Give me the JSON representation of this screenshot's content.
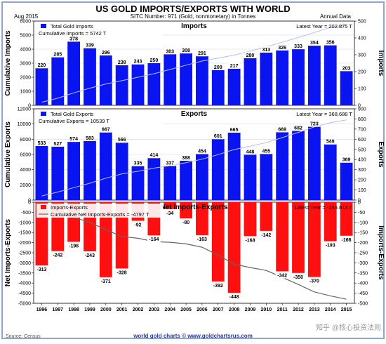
{
  "header": {
    "title": "US GOLD IMPORTS/EXPORTS WITH WORLD",
    "date": "Aug  2015",
    "sitc": "SITC Number: 971 (Gold, nonmonetary) in Tonnes",
    "annual": "Annual Data"
  },
  "footer": {
    "source": "Source: Census",
    "site": "world gold charts © www.goldchartsrus.com",
    "watermark": "知乎 @核心投资法则"
  },
  "colors": {
    "imports_bar": "#0a14f0",
    "exports_bar": "#0a14f0",
    "net_bar": "#ff1010",
    "cumulative_line": "#b6bff0",
    "net_cumulative_line": "#666666",
    "panel_bg": "#ffffff",
    "page_border": "#8fa8c8",
    "title_color": "#000000"
  },
  "chart_data": [
    {
      "type": "bar",
      "title": "Imports",
      "ylabel_left": "Cumulative Imports",
      "ylabel_right": "Imports",
      "legend": [
        "Total Gold Imports",
        "Cumulative Imports = 5742 T"
      ],
      "note": "Latest Year = 202.875 T",
      "categories": [
        "1996",
        "1997",
        "1998",
        "1999",
        "2000",
        "2001",
        "2002",
        "2003",
        "2004",
        "2005",
        "2006",
        "2007",
        "2008",
        "2009",
        "2010",
        "2011",
        "2012",
        "2013",
        "2014",
        "2015"
      ],
      "values": [
        220,
        285,
        378,
        339,
        296,
        238,
        243,
        250,
        303,
        308,
        291,
        209,
        217,
        280,
        313,
        326,
        333,
        354,
        356,
        203
      ],
      "value_labels": [
        "220",
        "285",
        "378",
        "339",
        "296",
        "238",
        "243",
        "250",
        "303",
        "308",
        "291",
        "209",
        "217",
        "280",
        "313",
        "326",
        "333",
        "354",
        "356",
        "203"
      ],
      "cumulative": [
        220,
        505,
        883,
        1222,
        1518,
        1756,
        1999,
        2249,
        2552,
        2860,
        3151,
        3360,
        3577,
        3857,
        4170,
        4496,
        4829,
        5183,
        5539,
        5742
      ],
      "ylim_left": [
        0,
        6000
      ],
      "ylim_right": [
        0,
        500
      ],
      "left_ticks": [
        "0",
        "1000",
        "2000",
        "3000",
        "4000",
        "5000",
        "6000"
      ],
      "right_ticks": [
        "0",
        "100",
        "200",
        "300",
        "400",
        "500"
      ]
    },
    {
      "type": "bar",
      "title": "Exports",
      "ylabel_left": "Cumulative Exports",
      "ylabel_right": "Exports",
      "legend": [
        "Total Gold Exports",
        "Cumulative Exports = 10539 T"
      ],
      "note": "Latest Year = 368.688 T",
      "categories": [
        "1996",
        "1997",
        "1998",
        "1999",
        "2000",
        "2001",
        "2002",
        "2003",
        "2004",
        "2005",
        "2006",
        "2007",
        "2008",
        "2009",
        "2010",
        "2011",
        "2012",
        "2013",
        "2014",
        "2015"
      ],
      "values": [
        533,
        527,
        574,
        583,
        667,
        566,
        335,
        414,
        337,
        388,
        454,
        601,
        665,
        448,
        455,
        669,
        682,
        723,
        549,
        369
      ],
      "value_labels": [
        "533",
        "527",
        "574",
        "583",
        "667",
        "566",
        "335",
        "414",
        "337",
        "388",
        "454",
        "601",
        "665",
        "448",
        "455",
        "669",
        "682",
        "723",
        "549",
        "369"
      ],
      "cumulative": [
        533,
        1060,
        1634,
        2217,
        2884,
        3450,
        3785,
        4199,
        4536,
        4924,
        5378,
        5979,
        6644,
        7092,
        7547,
        8216,
        8898,
        9621,
        10170,
        10539
      ],
      "ylim_left": [
        0,
        12000
      ],
      "ylim_right": [
        0,
        900
      ],
      "left_ticks": [
        "0",
        "2000",
        "4000",
        "6000",
        "8000",
        "10000",
        "12000"
      ],
      "right_ticks": [
        "0",
        "100",
        "200",
        "300",
        "400",
        "500",
        "600",
        "700",
        "800",
        "900"
      ]
    },
    {
      "type": "bar",
      "title": "Net Imports-Exports",
      "ylabel_left": "Net Imports-Exports",
      "ylabel_right": "Imports-Exports",
      "legend": [
        "Imports-Exports",
        "Cumulative Net Imports-Exports = -4797 T"
      ],
      "note": "Latest Year = -165.813 T",
      "categories": [
        "1996",
        "1997",
        "1998",
        "1999",
        "2000",
        "2001",
        "2002",
        "2003",
        "2004",
        "2005",
        "2006",
        "2007",
        "2008",
        "2009",
        "2010",
        "2011",
        "2012",
        "2013",
        "2014",
        "2015"
      ],
      "values": [
        -313,
        -242,
        -196,
        -243,
        -371,
        -328,
        -92,
        -164,
        -34,
        -80,
        -163,
        -392,
        -448,
        -168,
        -142,
        -342,
        -350,
        -370,
        -193,
        -166
      ],
      "value_labels": [
        "-313",
        "-242",
        "-196",
        "-243",
        "-371",
        "-328",
        "-92",
        "-164",
        "-34",
        "-80",
        "-163",
        "-392",
        "-448",
        "-168",
        "-142",
        "-342",
        "-350",
        "-370",
        "-193",
        "-166"
      ],
      "cumulative": [
        -313,
        -555,
        -751,
        -994,
        -1365,
        -1693,
        -1785,
        -1949,
        -1983,
        -2063,
        -2226,
        -2618,
        -3066,
        -3234,
        -3376,
        -3718,
        -4068,
        -4438,
        -4631,
        -4797
      ],
      "ylim_left": [
        -5000,
        0
      ],
      "ylim_right": [
        -500,
        0
      ],
      "left_ticks": [
        "-5000",
        "-4500",
        "-4000",
        "-3500",
        "-3000",
        "-2500",
        "-2000",
        "-1500",
        "-1000",
        "-500",
        "0"
      ],
      "right_ticks": [
        "-500",
        "-450",
        "-400",
        "-350",
        "-300",
        "-250",
        "-200",
        "-150",
        "-100",
        "-50",
        "0"
      ]
    }
  ]
}
